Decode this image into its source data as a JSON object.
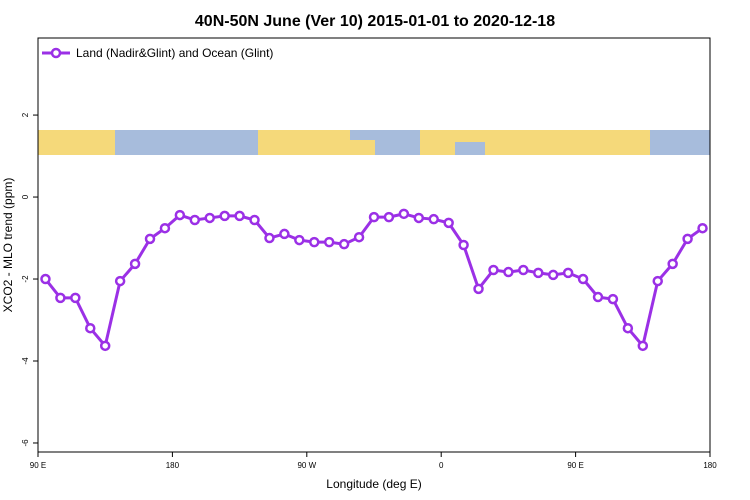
{
  "chart_data": {
    "type": "line",
    "title": "40N-50N June (Ver 10)   2015-01-01 to 2020-12-18",
    "xlabel": "Longitude (deg E)",
    "ylabel": "XCO2 - MLO trend (ppm)",
    "xlim": [
      90,
      540
    ],
    "ylim": [
      -6.22,
      3.88
    ],
    "xticks": [
      {
        "value": 90,
        "label": "90 E"
      },
      180,
      {
        "value": 270,
        "label": "90 W"
      },
      {
        "value": 360,
        "label": "0"
      },
      {
        "value": 450,
        "label": "90 E"
      },
      {
        "value": 540,
        "label": "180"
      }
    ],
    "yticks": [
      -6,
      -4,
      -2,
      0,
      2
    ],
    "legend": "top-left",
    "x": [
      95,
      105,
      115,
      125,
      135,
      145,
      155,
      165,
      175,
      185,
      195,
      205,
      215,
      225,
      235,
      245,
      255,
      265,
      275,
      285,
      295,
      305,
      315,
      325,
      335,
      345,
      355,
      365,
      375,
      385,
      395,
      405,
      415,
      425,
      435,
      445,
      455,
      465,
      475,
      485,
      495,
      505,
      515,
      525,
      535
    ],
    "series": [
      {
        "name": "Land (Nadir&Glint) and Ocean (Glint)",
        "color": "#9b30e6",
        "values": [
          -2.0,
          -2.46,
          -2.46,
          -3.2,
          -3.63,
          -2.05,
          -1.63,
          -1.02,
          -0.76,
          -0.44,
          -0.56,
          -0.51,
          -0.46,
          -0.46,
          -0.56,
          -1.0,
          -0.9,
          -1.05,
          -1.1,
          -1.1,
          -1.15,
          -0.98,
          -0.49,
          -0.49,
          -0.41,
          -0.51,
          -0.54,
          -0.63,
          -1.17,
          -2.24,
          -1.78,
          -1.83,
          -1.78,
          -1.85,
          -1.9,
          -1.85,
          -2.0,
          -2.44,
          -2.49,
          -3.2,
          -3.63,
          -2.05,
          -1.63,
          -1.02,
          -0.76
        ]
      }
    ]
  }
}
